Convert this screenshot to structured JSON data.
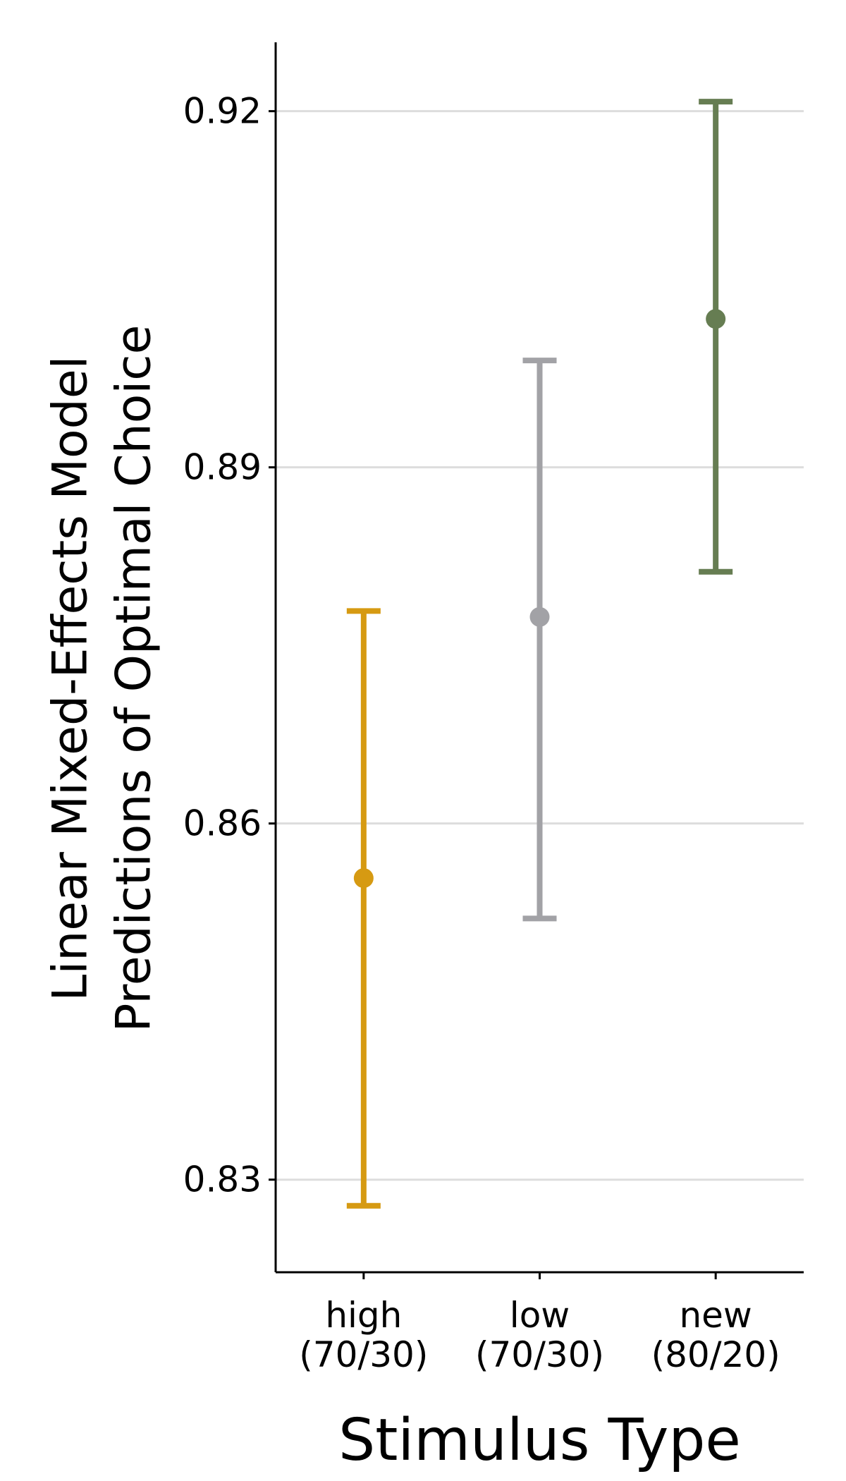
{
  "chart_data": {
    "type": "scatter",
    "subtype": "point-with-errorbars",
    "xlabel": "Stimulus Type",
    "ylabel_lines": [
      "Linear Mixed-Effects Model",
      "Predictions of Optimal Choice"
    ],
    "categories": [
      {
        "lines": [
          "high",
          "(70/30)"
        ]
      },
      {
        "lines": [
          "low",
          "(70/30)"
        ]
      },
      {
        "lines": [
          "new",
          "(80/20)"
        ]
      }
    ],
    "points": [
      {
        "category": "high (70/30)",
        "estimate": 0.8554,
        "lower": 0.8278,
        "upper": 0.8779,
        "color": "#D69A12"
      },
      {
        "category": "low (70/30)",
        "estimate": 0.8774,
        "lower": 0.852,
        "upper": 0.899,
        "color": "#A2A2A6"
      },
      {
        "category": "new (80/20)",
        "estimate": 0.9025,
        "lower": 0.8812,
        "upper": 0.9208,
        "color": "#667D52"
      }
    ],
    "yticks": [
      "0.83",
      "0.86",
      "0.89",
      "0.92"
    ],
    "ylim": [
      0.8222,
      0.9258
    ],
    "grid": {
      "horizontal_major": true,
      "vertical": false,
      "color": "#DDDDDD"
    },
    "legend": "none"
  }
}
